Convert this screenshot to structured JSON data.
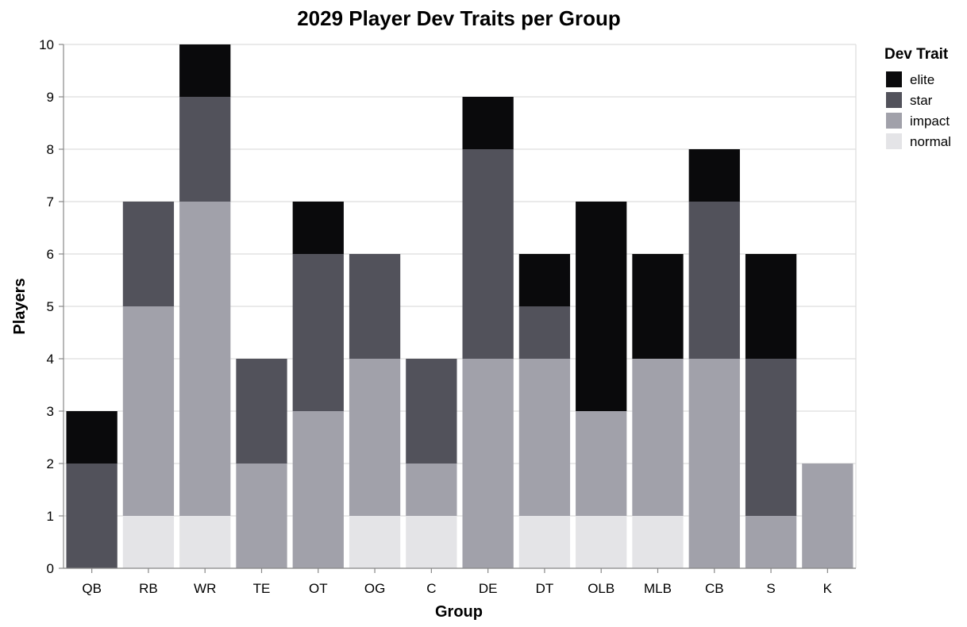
{
  "chart_data": {
    "type": "bar",
    "stacked": true,
    "title": "2029 Player Dev Traits per Group",
    "xlabel": "Group",
    "ylabel": "Players",
    "ylim": [
      0,
      10
    ],
    "yticks": [
      0,
      1,
      2,
      3,
      4,
      5,
      6,
      7,
      8,
      9,
      10
    ],
    "grid": true,
    "legend": {
      "title": "Dev Trait",
      "placement": "right"
    },
    "categories": [
      "QB",
      "RB",
      "WR",
      "TE",
      "OT",
      "OG",
      "C",
      "DE",
      "DT",
      "OLB",
      "MLB",
      "CB",
      "S",
      "K"
    ],
    "series": [
      {
        "name": "normal",
        "color": "#e4e4e7",
        "values": [
          0,
          1,
          1,
          0,
          0,
          1,
          1,
          0,
          1,
          1,
          1,
          0,
          0,
          0
        ]
      },
      {
        "name": "impact",
        "color": "#a1a1aa",
        "values": [
          0,
          4,
          6,
          2,
          3,
          3,
          1,
          4,
          3,
          2,
          3,
          4,
          1,
          2
        ]
      },
      {
        "name": "star",
        "color": "#52525b",
        "values": [
          2,
          2,
          2,
          2,
          3,
          2,
          2,
          4,
          1,
          0,
          0,
          3,
          3,
          0
        ]
      },
      {
        "name": "elite",
        "color": "#0a0a0c",
        "values": [
          1,
          0,
          1,
          0,
          1,
          0,
          0,
          1,
          1,
          4,
          2,
          1,
          2,
          0
        ]
      }
    ],
    "legend_order": [
      "elite",
      "star",
      "impact",
      "normal"
    ]
  }
}
